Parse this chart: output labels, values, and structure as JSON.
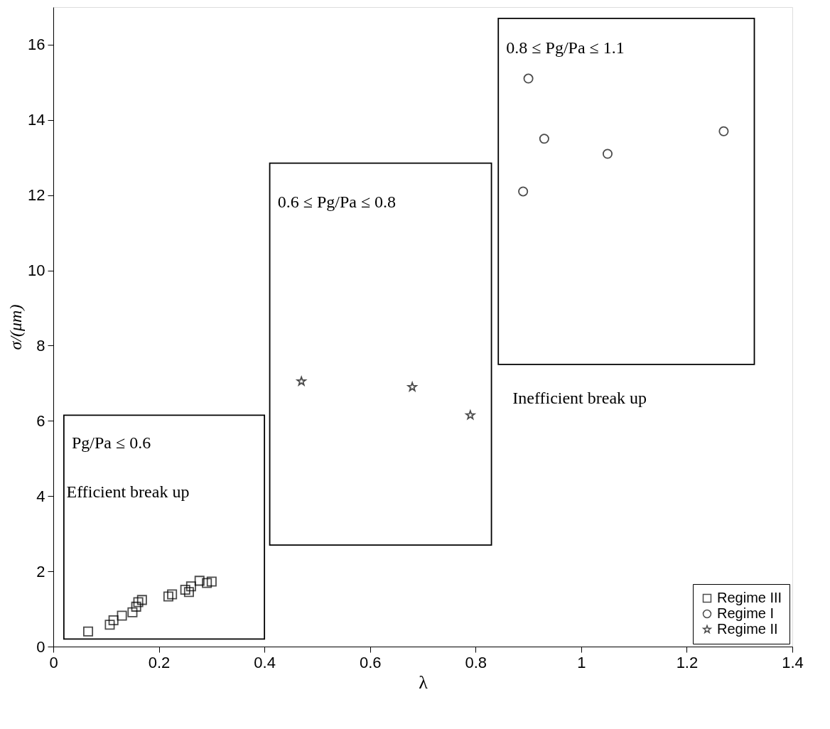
{
  "chart_data": {
    "type": "scatter",
    "xlabel": "λ",
    "ylabel": "σ/(μm)",
    "xlim": [
      0,
      1.4
    ],
    "xticks": [
      0,
      0.2,
      0.4,
      0.6,
      0.8,
      1,
      1.2,
      1.4
    ],
    "ylim": [
      0,
      17
    ],
    "yticks": [
      0,
      2,
      4,
      6,
      8,
      10,
      12,
      14,
      16
    ],
    "grid": false,
    "legend": "bottom right",
    "series": [
      {
        "name": "Regime III",
        "color": "#000000",
        "marker": "square",
        "x": [
          0.066,
          0.107,
          0.114,
          0.13,
          0.15,
          0.157,
          0.161,
          0.168,
          0.218,
          0.225,
          0.25,
          0.257,
          0.261,
          0.277,
          0.291,
          0.3
        ],
        "values": [
          0.4,
          0.58,
          0.7,
          0.82,
          0.91,
          1.06,
          1.18,
          1.24,
          1.33,
          1.39,
          1.51,
          1.45,
          1.6,
          1.75,
          1.69,
          1.73
        ]
      },
      {
        "name": "Regime I",
        "color": "#000000",
        "marker": "circle",
        "x": [
          0.9,
          0.93,
          1.05,
          1.27,
          0.89
        ],
        "values": [
          15.1,
          13.5,
          13.1,
          13.7,
          12.1
        ]
      },
      {
        "name": "Regime II",
        "color": "#000000",
        "marker": "star",
        "x": [
          0.47,
          0.68,
          0.79
        ],
        "values": [
          7.05,
          6.9,
          6.15
        ]
      }
    ],
    "annotations": [
      "Pg/Pa ≤ 0.6",
      "Efficient break up",
      "0.6 ≤ Pg/Pa ≤ 0.8",
      "0.8 ≤ Pg/Pa ≤ 1.1",
      "Inefficient break up"
    ]
  }
}
